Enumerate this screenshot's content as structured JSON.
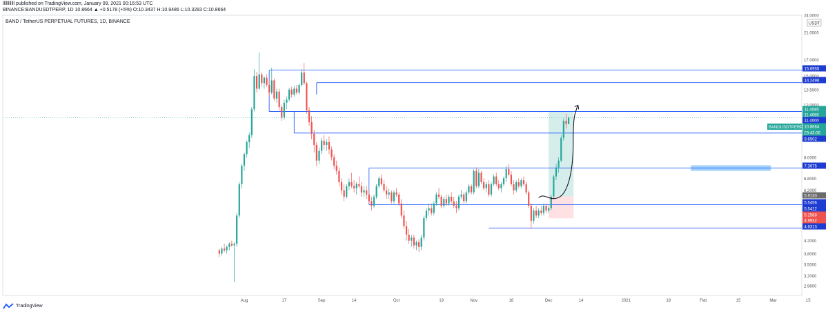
{
  "header": {
    "line1": "lllllllllll published on TradingView.com, January 09, 2021 00:16:53 UTC",
    "line2": "BINANCE:BANDUSDTPERP, 1D 10.8664 ▲ +0.5178 (+5%) O:10.3437 H:10.9486 L:10.3283 C:10.8664"
  },
  "symbol_title": "BAND / TetherUS PERPETUAL FUTURES, 1D, BINANCE",
  "footer_brand": "TradingView",
  "icons": [
    "tradingview-logo-icon",
    "arrow-curve-icon"
  ],
  "colors": {
    "up": "#26a69a",
    "down": "#ef5350",
    "level": "#2962ff",
    "last": "#26a69a",
    "profit_zone": "#b2dfdb",
    "loss_zone": "#ffcdd2",
    "highlight": "#90caf9"
  },
  "chart_data": {
    "type": "candlestick",
    "title": "BAND / TetherUS PERPETUAL FUTURES, 1D, BINANCE",
    "y_scale": "log",
    "ylim": [
      2.75,
      24
    ],
    "y_ticks": [
      "24.0000",
      "21.0000",
      "17.0000",
      "15.0000",
      "13.5000",
      "12.0000",
      "9.6502",
      "8.0000",
      "6.8000",
      "6.2000",
      "4.2000",
      "3.8000",
      "3.5000",
      "3.2000",
      "2.9600"
    ],
    "x_ticks": [
      "Aug",
      "17",
      "Sep",
      "14",
      "Oct",
      "19",
      "Nov",
      "16",
      "Dec",
      "14",
      "2021",
      "18",
      "Feb",
      "15",
      "Mar",
      "15"
    ],
    "currency_label": "USDT",
    "start_date": "2020-07-22",
    "candles": [
      {
        "o": 3.9,
        "h": 3.95,
        "l": 3.7,
        "c": 3.8
      },
      {
        "o": 3.8,
        "h": 4.0,
        "l": 3.75,
        "c": 3.95
      },
      {
        "o": 3.95,
        "h": 4.1,
        "l": 3.85,
        "c": 3.9
      },
      {
        "o": 3.9,
        "h": 4.05,
        "l": 3.8,
        "c": 4.0
      },
      {
        "o": 4.0,
        "h": 4.15,
        "l": 3.9,
        "c": 4.1
      },
      {
        "o": 4.1,
        "h": 4.2,
        "l": 4.0,
        "c": 4.05
      },
      {
        "o": 4.05,
        "h": 4.15,
        "l": 3.05,
        "c": 4.1
      },
      {
        "o": 4.1,
        "h": 5.2,
        "l": 4.0,
        "c": 5.1
      },
      {
        "o": 5.1,
        "h": 6.6,
        "l": 5.0,
        "c": 6.5
      },
      {
        "o": 6.5,
        "h": 7.6,
        "l": 6.3,
        "c": 7.5
      },
      {
        "o": 7.5,
        "h": 8.3,
        "l": 7.2,
        "c": 8.2
      },
      {
        "o": 8.2,
        "h": 9.1,
        "l": 8.0,
        "c": 9.0
      },
      {
        "o": 9.0,
        "h": 9.7,
        "l": 8.6,
        "c": 9.5
      },
      {
        "o": 9.5,
        "h": 11.8,
        "l": 9.3,
        "c": 11.6
      },
      {
        "o": 11.6,
        "h": 15.8,
        "l": 11.4,
        "c": 15.0
      },
      {
        "o": 15.0,
        "h": 15.5,
        "l": 13.2,
        "c": 13.6
      },
      {
        "o": 13.6,
        "h": 18.0,
        "l": 13.5,
        "c": 15.2
      },
      {
        "o": 15.2,
        "h": 15.4,
        "l": 13.8,
        "c": 14.2
      },
      {
        "o": 14.2,
        "h": 15.0,
        "l": 13.6,
        "c": 14.8
      },
      {
        "o": 14.8,
        "h": 15.2,
        "l": 13.8,
        "c": 14.0
      },
      {
        "o": 14.0,
        "h": 14.6,
        "l": 12.8,
        "c": 13.2
      },
      {
        "o": 13.2,
        "h": 16.0,
        "l": 13.0,
        "c": 14.5
      },
      {
        "o": 14.5,
        "h": 14.7,
        "l": 12.4,
        "c": 12.6
      },
      {
        "o": 12.6,
        "h": 13.6,
        "l": 12.2,
        "c": 13.3
      },
      {
        "o": 13.3,
        "h": 13.6,
        "l": 11.5,
        "c": 11.8
      },
      {
        "o": 11.8,
        "h": 12.0,
        "l": 10.6,
        "c": 10.9
      },
      {
        "o": 10.9,
        "h": 12.5,
        "l": 10.7,
        "c": 12.2
      },
      {
        "o": 12.2,
        "h": 12.8,
        "l": 11.6,
        "c": 12.5
      },
      {
        "o": 12.5,
        "h": 13.7,
        "l": 12.3,
        "c": 13.5
      },
      {
        "o": 13.5,
        "h": 13.8,
        "l": 12.7,
        "c": 13.0
      },
      {
        "o": 13.0,
        "h": 13.9,
        "l": 12.8,
        "c": 13.6
      },
      {
        "o": 13.6,
        "h": 14.0,
        "l": 13.0,
        "c": 13.2
      },
      {
        "o": 13.2,
        "h": 14.2,
        "l": 13.0,
        "c": 14.0
      },
      {
        "o": 14.0,
        "h": 15.8,
        "l": 13.8,
        "c": 15.4
      },
      {
        "o": 15.4,
        "h": 16.6,
        "l": 14.0,
        "c": 14.2
      },
      {
        "o": 14.2,
        "h": 14.4,
        "l": 11.2,
        "c": 11.5
      },
      {
        "o": 11.5,
        "h": 11.8,
        "l": 10.2,
        "c": 10.5
      },
      {
        "o": 10.5,
        "h": 11.0,
        "l": 9.2,
        "c": 9.6
      },
      {
        "o": 9.6,
        "h": 9.9,
        "l": 8.3,
        "c": 8.8
      },
      {
        "o": 8.8,
        "h": 9.0,
        "l": 7.5,
        "c": 7.8
      },
      {
        "o": 7.8,
        "h": 8.6,
        "l": 7.6,
        "c": 8.4
      },
      {
        "o": 8.4,
        "h": 9.3,
        "l": 8.2,
        "c": 9.1
      },
      {
        "o": 9.1,
        "h": 9.5,
        "l": 8.5,
        "c": 8.8
      },
      {
        "o": 8.8,
        "h": 9.2,
        "l": 8.4,
        "c": 9.0
      },
      {
        "o": 9.0,
        "h": 9.4,
        "l": 8.2,
        "c": 8.5
      },
      {
        "o": 8.5,
        "h": 8.7,
        "l": 7.8,
        "c": 8.0
      },
      {
        "o": 8.0,
        "h": 8.2,
        "l": 7.3,
        "c": 7.5
      },
      {
        "o": 7.5,
        "h": 7.8,
        "l": 7.0,
        "c": 7.2
      },
      {
        "o": 7.2,
        "h": 7.4,
        "l": 6.4,
        "c": 6.6
      },
      {
        "o": 6.6,
        "h": 6.8,
        "l": 6.0,
        "c": 6.2
      },
      {
        "o": 6.2,
        "h": 6.5,
        "l": 5.7,
        "c": 5.9
      },
      {
        "o": 5.9,
        "h": 6.5,
        "l": 5.8,
        "c": 6.4
      },
      {
        "o": 6.4,
        "h": 6.8,
        "l": 6.2,
        "c": 6.6
      },
      {
        "o": 6.6,
        "h": 7.1,
        "l": 6.3,
        "c": 6.4
      },
      {
        "o": 6.4,
        "h": 6.7,
        "l": 6.1,
        "c": 6.3
      },
      {
        "o": 6.3,
        "h": 6.6,
        "l": 6.0,
        "c": 6.5
      },
      {
        "o": 6.5,
        "h": 6.9,
        "l": 6.3,
        "c": 6.4
      },
      {
        "o": 6.4,
        "h": 6.6,
        "l": 5.9,
        "c": 6.1
      },
      {
        "o": 6.1,
        "h": 6.4,
        "l": 5.9,
        "c": 6.2
      },
      {
        "o": 6.2,
        "h": 6.4,
        "l": 5.8,
        "c": 6.0
      },
      {
        "o": 6.0,
        "h": 6.2,
        "l": 5.6,
        "c": 5.7
      },
      {
        "o": 5.7,
        "h": 5.9,
        "l": 5.3,
        "c": 5.5
      },
      {
        "o": 5.5,
        "h": 6.0,
        "l": 5.4,
        "c": 5.9
      },
      {
        "o": 5.9,
        "h": 6.5,
        "l": 5.8,
        "c": 6.4
      },
      {
        "o": 6.4,
        "h": 6.9,
        "l": 6.3,
        "c": 6.8
      },
      {
        "o": 6.8,
        "h": 7.0,
        "l": 6.4,
        "c": 6.5
      },
      {
        "o": 6.5,
        "h": 6.7,
        "l": 6.1,
        "c": 6.2
      },
      {
        "o": 6.2,
        "h": 6.4,
        "l": 5.8,
        "c": 6.0
      },
      {
        "o": 6.0,
        "h": 6.3,
        "l": 5.8,
        "c": 6.1
      },
      {
        "o": 6.1,
        "h": 6.2,
        "l": 5.6,
        "c": 5.7
      },
      {
        "o": 5.7,
        "h": 6.2,
        "l": 5.6,
        "c": 6.1
      },
      {
        "o": 6.1,
        "h": 6.3,
        "l": 5.9,
        "c": 6.0
      },
      {
        "o": 6.0,
        "h": 6.1,
        "l": 5.5,
        "c": 5.6
      },
      {
        "o": 5.6,
        "h": 5.8,
        "l": 5.0,
        "c": 5.1
      },
      {
        "o": 5.1,
        "h": 5.3,
        "l": 4.6,
        "c": 4.7
      },
      {
        "o": 4.7,
        "h": 4.9,
        "l": 4.2,
        "c": 4.4
      },
      {
        "o": 4.4,
        "h": 4.6,
        "l": 4.1,
        "c": 4.2
      },
      {
        "o": 4.2,
        "h": 4.4,
        "l": 4.0,
        "c": 4.3
      },
      {
        "o": 4.3,
        "h": 4.4,
        "l": 3.95,
        "c": 4.05
      },
      {
        "o": 4.05,
        "h": 4.2,
        "l": 3.9,
        "c": 4.15
      },
      {
        "o": 4.15,
        "h": 4.25,
        "l": 3.85,
        "c": 4.0
      },
      {
        "o": 4.0,
        "h": 4.4,
        "l": 3.9,
        "c": 4.3
      },
      {
        "o": 4.3,
        "h": 5.1,
        "l": 4.2,
        "c": 5.0
      },
      {
        "o": 5.0,
        "h": 5.4,
        "l": 4.9,
        "c": 5.3
      },
      {
        "o": 5.3,
        "h": 5.6,
        "l": 5.1,
        "c": 5.4
      },
      {
        "o": 5.4,
        "h": 5.6,
        "l": 5.1,
        "c": 5.2
      },
      {
        "o": 5.2,
        "h": 5.7,
        "l": 5.1,
        "c": 5.6
      },
      {
        "o": 5.6,
        "h": 6.1,
        "l": 5.5,
        "c": 6.0
      },
      {
        "o": 6.0,
        "h": 6.3,
        "l": 5.8,
        "c": 5.9
      },
      {
        "o": 5.9,
        "h": 6.0,
        "l": 5.4,
        "c": 5.5
      },
      {
        "o": 5.5,
        "h": 5.9,
        "l": 5.4,
        "c": 5.8
      },
      {
        "o": 5.8,
        "h": 6.0,
        "l": 5.5,
        "c": 5.6
      },
      {
        "o": 5.6,
        "h": 6.0,
        "l": 5.5,
        "c": 5.9
      },
      {
        "o": 5.9,
        "h": 6.1,
        "l": 5.6,
        "c": 5.7
      },
      {
        "o": 5.7,
        "h": 5.9,
        "l": 5.4,
        "c": 5.5
      },
      {
        "o": 5.5,
        "h": 5.7,
        "l": 5.2,
        "c": 5.4
      },
      {
        "o": 5.4,
        "h": 6.0,
        "l": 5.3,
        "c": 5.9
      },
      {
        "o": 5.9,
        "h": 6.2,
        "l": 5.8,
        "c": 6.0
      },
      {
        "o": 6.0,
        "h": 6.1,
        "l": 5.6,
        "c": 5.7
      },
      {
        "o": 5.7,
        "h": 6.2,
        "l": 5.6,
        "c": 6.1
      },
      {
        "o": 6.1,
        "h": 6.5,
        "l": 6.0,
        "c": 6.4
      },
      {
        "o": 6.4,
        "h": 6.5,
        "l": 6.0,
        "c": 6.1
      },
      {
        "o": 6.1,
        "h": 7.3,
        "l": 6.0,
        "c": 7.2
      },
      {
        "o": 7.2,
        "h": 7.4,
        "l": 6.3,
        "c": 6.4
      },
      {
        "o": 6.4,
        "h": 7.3,
        "l": 6.3,
        "c": 7.1
      },
      {
        "o": 7.1,
        "h": 7.2,
        "l": 6.5,
        "c": 6.6
      },
      {
        "o": 6.6,
        "h": 6.8,
        "l": 6.2,
        "c": 6.3
      },
      {
        "o": 6.3,
        "h": 6.6,
        "l": 6.1,
        "c": 6.5
      },
      {
        "o": 6.5,
        "h": 6.7,
        "l": 5.9,
        "c": 6.0
      },
      {
        "o": 6.0,
        "h": 6.6,
        "l": 5.9,
        "c": 6.5
      },
      {
        "o": 6.5,
        "h": 7.0,
        "l": 6.4,
        "c": 6.9
      },
      {
        "o": 6.9,
        "h": 7.1,
        "l": 6.4,
        "c": 6.5
      },
      {
        "o": 6.5,
        "h": 6.7,
        "l": 6.2,
        "c": 6.3
      },
      {
        "o": 6.3,
        "h": 6.6,
        "l": 6.1,
        "c": 6.5
      },
      {
        "o": 6.5,
        "h": 6.9,
        "l": 6.4,
        "c": 6.8
      },
      {
        "o": 6.8,
        "h": 7.5,
        "l": 6.6,
        "c": 7.3
      },
      {
        "o": 7.3,
        "h": 7.6,
        "l": 6.9,
        "c": 7.0
      },
      {
        "o": 7.0,
        "h": 7.2,
        "l": 6.4,
        "c": 6.5
      },
      {
        "o": 6.5,
        "h": 6.7,
        "l": 6.0,
        "c": 6.2
      },
      {
        "o": 6.2,
        "h": 6.7,
        "l": 6.1,
        "c": 6.6
      },
      {
        "o": 6.6,
        "h": 6.8,
        "l": 6.3,
        "c": 6.4
      },
      {
        "o": 6.4,
        "h": 6.8,
        "l": 6.3,
        "c": 6.7
      },
      {
        "o": 6.7,
        "h": 6.9,
        "l": 6.4,
        "c": 6.5
      },
      {
        "o": 6.5,
        "h": 6.6,
        "l": 6.0,
        "c": 6.1
      },
      {
        "o": 6.1,
        "h": 6.2,
        "l": 5.4,
        "c": 5.5
      },
      {
        "o": 5.5,
        "h": 5.6,
        "l": 4.6,
        "c": 4.9
      },
      {
        "o": 4.9,
        "h": 5.4,
        "l": 4.8,
        "c": 5.3
      },
      {
        "o": 5.3,
        "h": 5.5,
        "l": 5.0,
        "c": 5.1
      },
      {
        "o": 5.1,
        "h": 5.4,
        "l": 5.0,
        "c": 5.3
      },
      {
        "o": 5.3,
        "h": 5.5,
        "l": 5.1,
        "c": 5.2
      },
      {
        "o": 5.2,
        "h": 5.6,
        "l": 5.1,
        "c": 5.5
      },
      {
        "o": 5.5,
        "h": 5.6,
        "l": 5.2,
        "c": 5.3
      },
      {
        "o": 5.3,
        "h": 5.5,
        "l": 5.2,
        "c": 5.4
      },
      {
        "o": 5.4,
        "h": 6.0,
        "l": 5.3,
        "c": 5.9
      },
      {
        "o": 5.9,
        "h": 7.0,
        "l": 5.8,
        "c": 6.9
      },
      {
        "o": 6.9,
        "h": 7.6,
        "l": 6.7,
        "c": 7.4
      },
      {
        "o": 7.4,
        "h": 8.0,
        "l": 7.1,
        "c": 7.8
      },
      {
        "o": 7.8,
        "h": 9.5,
        "l": 7.7,
        "c": 9.3
      },
      {
        "o": 9.3,
        "h": 10.8,
        "l": 9.1,
        "c": 10.6
      },
      {
        "o": 10.6,
        "h": 11.2,
        "l": 10.0,
        "c": 10.35
      },
      {
        "o": 10.3437,
        "h": 10.9486,
        "l": 10.3283,
        "c": 10.8664
      }
    ],
    "horizontal_levels": [
      "15.6955",
      "14.2498",
      "11.4085",
      "11.4000",
      "9.6502",
      "7.3675",
      "5.5456",
      "5.5412",
      "4.6313"
    ],
    "axis_tags": [
      {
        "text": "15.6955",
        "style": "level"
      },
      {
        "text": "14.2498",
        "style": "level"
      },
      {
        "text": "11.4085",
        "style": "green"
      },
      {
        "text": "11.4085",
        "style": "green"
      },
      {
        "text": "11.4000",
        "style": "level"
      },
      {
        "text": "10.8664",
        "style": "green"
      },
      {
        "text": "23:43:06",
        "style": "green"
      },
      {
        "text": "9.6502",
        "style": "level"
      },
      {
        "text": "7.3675",
        "style": "level"
      },
      {
        "text": "5.9130",
        "style": "grey"
      },
      {
        "text": "5.5456",
        "style": "level"
      },
      {
        "text": "5.5412",
        "style": "level"
      },
      {
        "text": "5.2588",
        "style": "red"
      },
      {
        "text": "4.9932",
        "style": "red"
      },
      {
        "text": "4.6313",
        "style": "level"
      }
    ],
    "last_price_label": "BANDUSDTPERP"
  }
}
